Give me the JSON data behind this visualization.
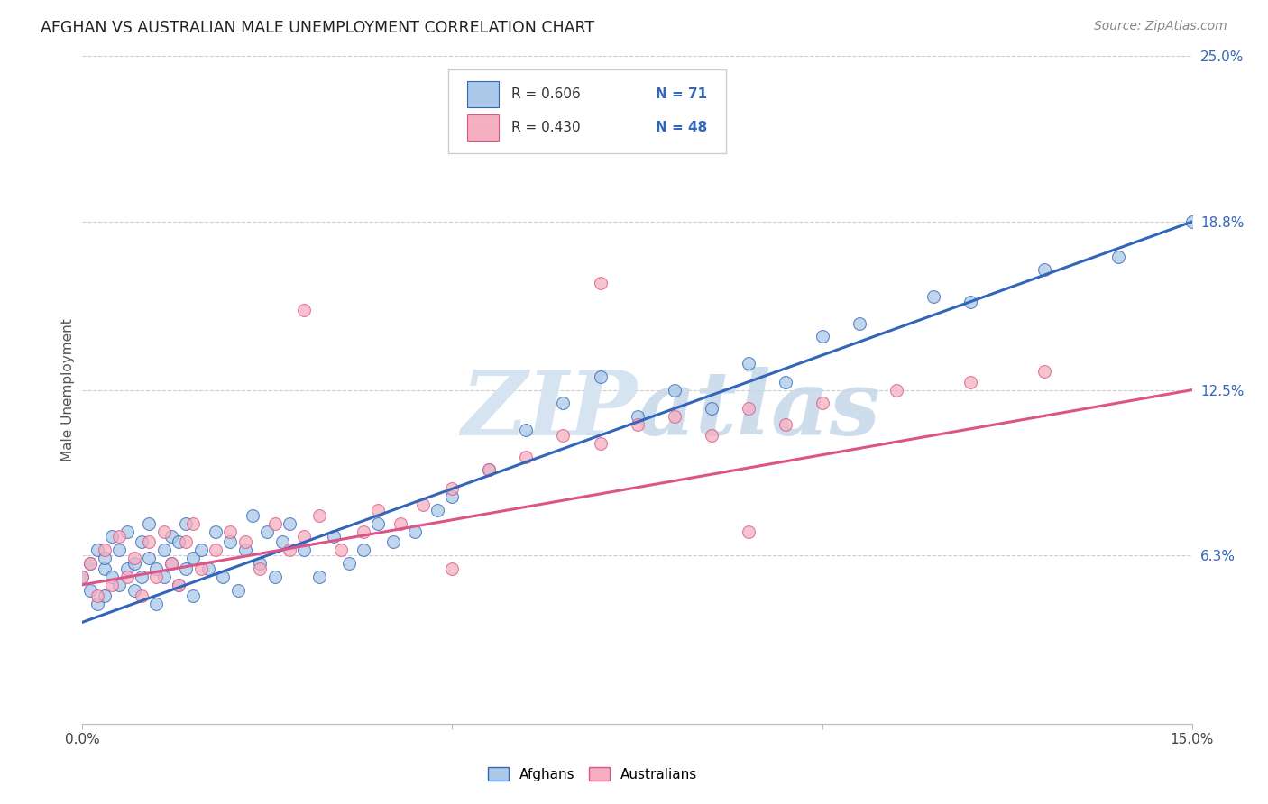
{
  "title": "AFGHAN VS AUSTRALIAN MALE UNEMPLOYMENT CORRELATION CHART",
  "source": "Source: ZipAtlas.com",
  "ylabel": "Male Unemployment",
  "x_min": 0.0,
  "x_max": 0.15,
  "y_min": 0.0,
  "y_max": 0.25,
  "y_ticks_right": [
    0.063,
    0.125,
    0.188,
    0.25
  ],
  "y_tick_labels_right": [
    "6.3%",
    "12.5%",
    "18.8%",
    "25.0%"
  ],
  "afghans_color": "#aac9e8",
  "australians_color": "#f4afc0",
  "afghans_line_color": "#3366bb",
  "australians_line_color": "#dd5588",
  "watermark_zip": "ZIP",
  "watermark_atlas": "atlas",
  "watermark_color": "#d5e4f0",
  "background_color": "#ffffff",
  "grid_color": "#cccccc",
  "afghans_line_x": [
    0.0,
    0.15
  ],
  "afghans_line_y": [
    0.038,
    0.188
  ],
  "australians_line_x": [
    0.0,
    0.15
  ],
  "australians_line_y": [
    0.052,
    0.125
  ],
  "afghans_x": [
    0.0,
    0.001,
    0.001,
    0.002,
    0.002,
    0.003,
    0.003,
    0.003,
    0.004,
    0.004,
    0.005,
    0.005,
    0.006,
    0.006,
    0.007,
    0.007,
    0.008,
    0.008,
    0.009,
    0.009,
    0.01,
    0.01,
    0.011,
    0.011,
    0.012,
    0.012,
    0.013,
    0.013,
    0.014,
    0.014,
    0.015,
    0.015,
    0.016,
    0.017,
    0.018,
    0.019,
    0.02,
    0.021,
    0.022,
    0.023,
    0.024,
    0.025,
    0.026,
    0.027,
    0.028,
    0.03,
    0.032,
    0.034,
    0.036,
    0.038,
    0.04,
    0.042,
    0.045,
    0.048,
    0.05,
    0.055,
    0.06,
    0.065,
    0.07,
    0.075,
    0.08,
    0.085,
    0.09,
    0.095,
    0.1,
    0.105,
    0.115,
    0.12,
    0.13,
    0.14,
    0.15
  ],
  "afghans_y": [
    0.055,
    0.06,
    0.05,
    0.065,
    0.045,
    0.058,
    0.062,
    0.048,
    0.055,
    0.07,
    0.052,
    0.065,
    0.058,
    0.072,
    0.06,
    0.05,
    0.068,
    0.055,
    0.062,
    0.075,
    0.058,
    0.045,
    0.065,
    0.055,
    0.07,
    0.06,
    0.052,
    0.068,
    0.058,
    0.075,
    0.062,
    0.048,
    0.065,
    0.058,
    0.072,
    0.055,
    0.068,
    0.05,
    0.065,
    0.078,
    0.06,
    0.072,
    0.055,
    0.068,
    0.075,
    0.065,
    0.055,
    0.07,
    0.06,
    0.065,
    0.075,
    0.068,
    0.072,
    0.08,
    0.085,
    0.095,
    0.11,
    0.12,
    0.13,
    0.115,
    0.125,
    0.118,
    0.135,
    0.128,
    0.145,
    0.15,
    0.16,
    0.158,
    0.17,
    0.175,
    0.188
  ],
  "australians_x": [
    0.0,
    0.001,
    0.002,
    0.003,
    0.004,
    0.005,
    0.006,
    0.007,
    0.008,
    0.009,
    0.01,
    0.011,
    0.012,
    0.013,
    0.014,
    0.015,
    0.016,
    0.018,
    0.02,
    0.022,
    0.024,
    0.026,
    0.028,
    0.03,
    0.032,
    0.035,
    0.038,
    0.04,
    0.043,
    0.046,
    0.05,
    0.055,
    0.06,
    0.065,
    0.07,
    0.075,
    0.08,
    0.085,
    0.09,
    0.095,
    0.1,
    0.11,
    0.12,
    0.13,
    0.03,
    0.05,
    0.07,
    0.09
  ],
  "australians_y": [
    0.055,
    0.06,
    0.048,
    0.065,
    0.052,
    0.07,
    0.055,
    0.062,
    0.048,
    0.068,
    0.055,
    0.072,
    0.06,
    0.052,
    0.068,
    0.075,
    0.058,
    0.065,
    0.072,
    0.068,
    0.058,
    0.075,
    0.065,
    0.07,
    0.078,
    0.065,
    0.072,
    0.08,
    0.075,
    0.082,
    0.088,
    0.095,
    0.1,
    0.108,
    0.105,
    0.112,
    0.115,
    0.108,
    0.118,
    0.112,
    0.12,
    0.125,
    0.128,
    0.132,
    0.155,
    0.058,
    0.165,
    0.072
  ]
}
